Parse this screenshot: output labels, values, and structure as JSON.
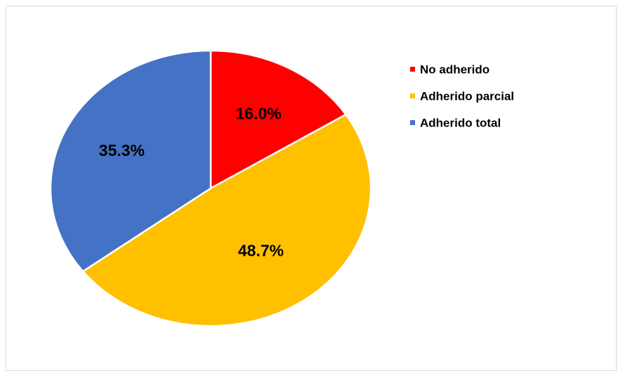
{
  "chart_data": {
    "type": "pie",
    "categories": [
      "No adherido",
      "Adherido parcial",
      "Adherido total"
    ],
    "values": [
      16.0,
      48.7,
      35.3
    ],
    "data_labels": [
      "16.0%",
      "48.7%",
      "35.3%"
    ],
    "colors": [
      "#ff0000",
      "#ffc000",
      "#4472c4"
    ],
    "start_angle_deg": 0,
    "direction": "clockwise",
    "legend_position": "top-right",
    "title": ""
  }
}
